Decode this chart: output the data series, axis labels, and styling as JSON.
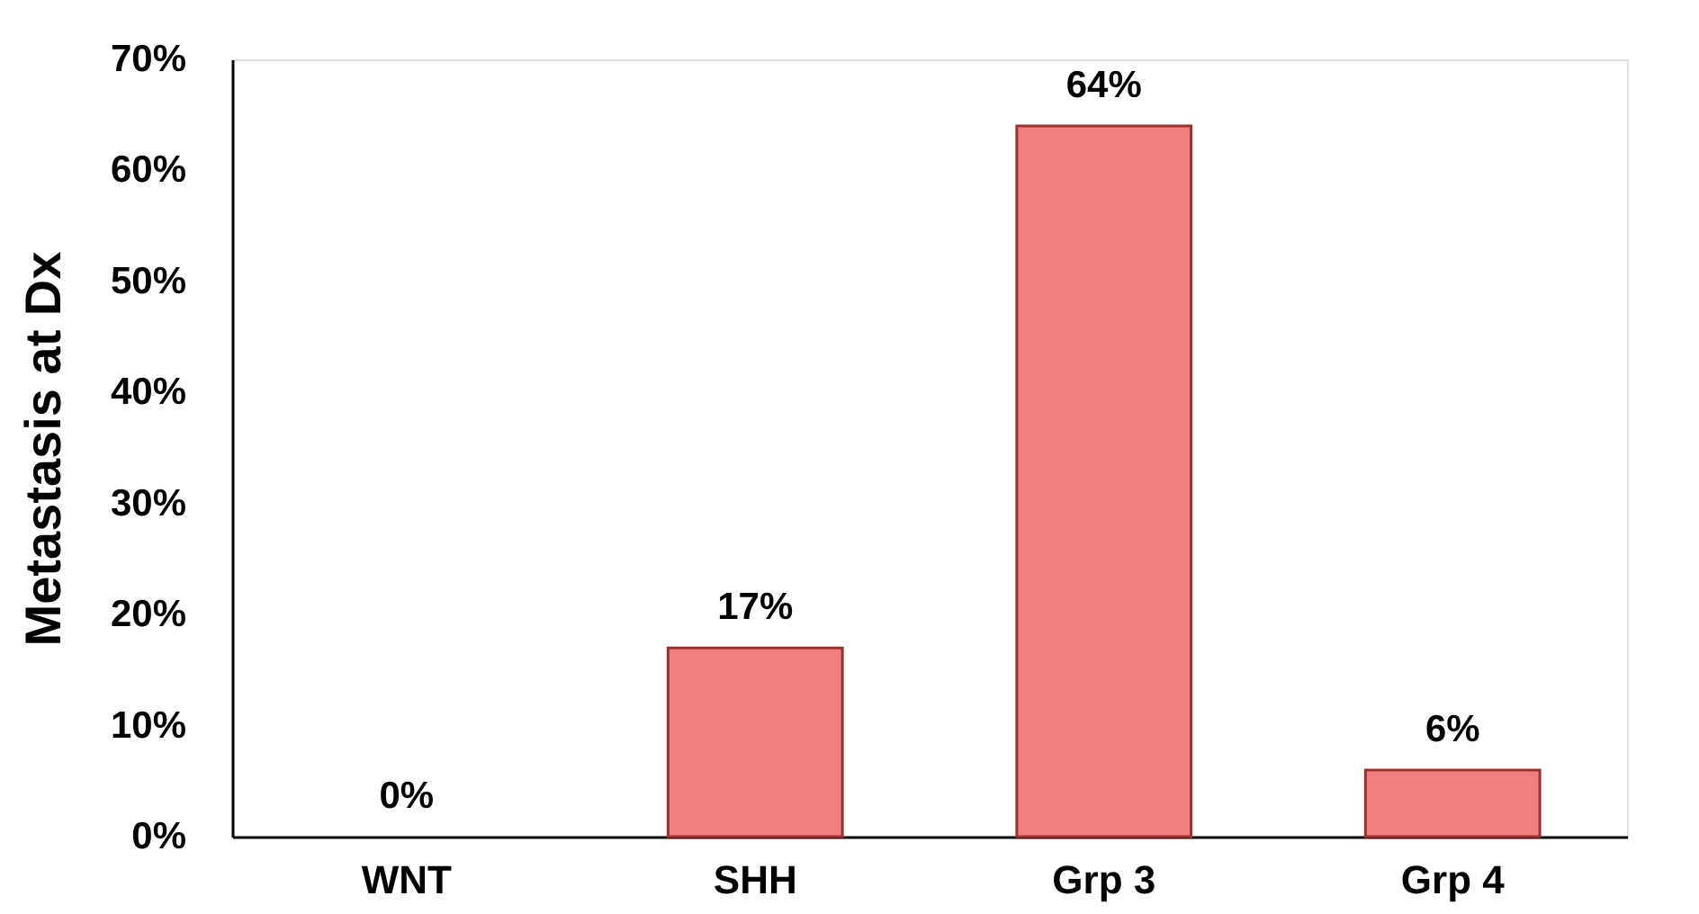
{
  "chart_data": {
    "type": "bar",
    "ylabel": "Metastasis at Dx",
    "categories": [
      "WNT",
      "SHH",
      "Grp 3",
      "Grp 4"
    ],
    "values": [
      0,
      17,
      64,
      6
    ],
    "color": "#f08080",
    "value_labels": [
      "0%",
      "17%",
      "64%",
      "6%"
    ],
    "ylim": [
      0,
      70
    ],
    "yticks": [
      {
        "value": 0,
        "label": "0%"
      },
      {
        "value": 10,
        "label": "10%"
      },
      {
        "value": 20,
        "label": "20%"
      },
      {
        "value": 30,
        "label": "30%"
      },
      {
        "value": 40,
        "label": "40%"
      },
      {
        "value": 50,
        "label": "50%"
      },
      {
        "value": 60,
        "label": "60%"
      },
      {
        "value": 70,
        "label": "70%"
      }
    ],
    "grid": false
  }
}
